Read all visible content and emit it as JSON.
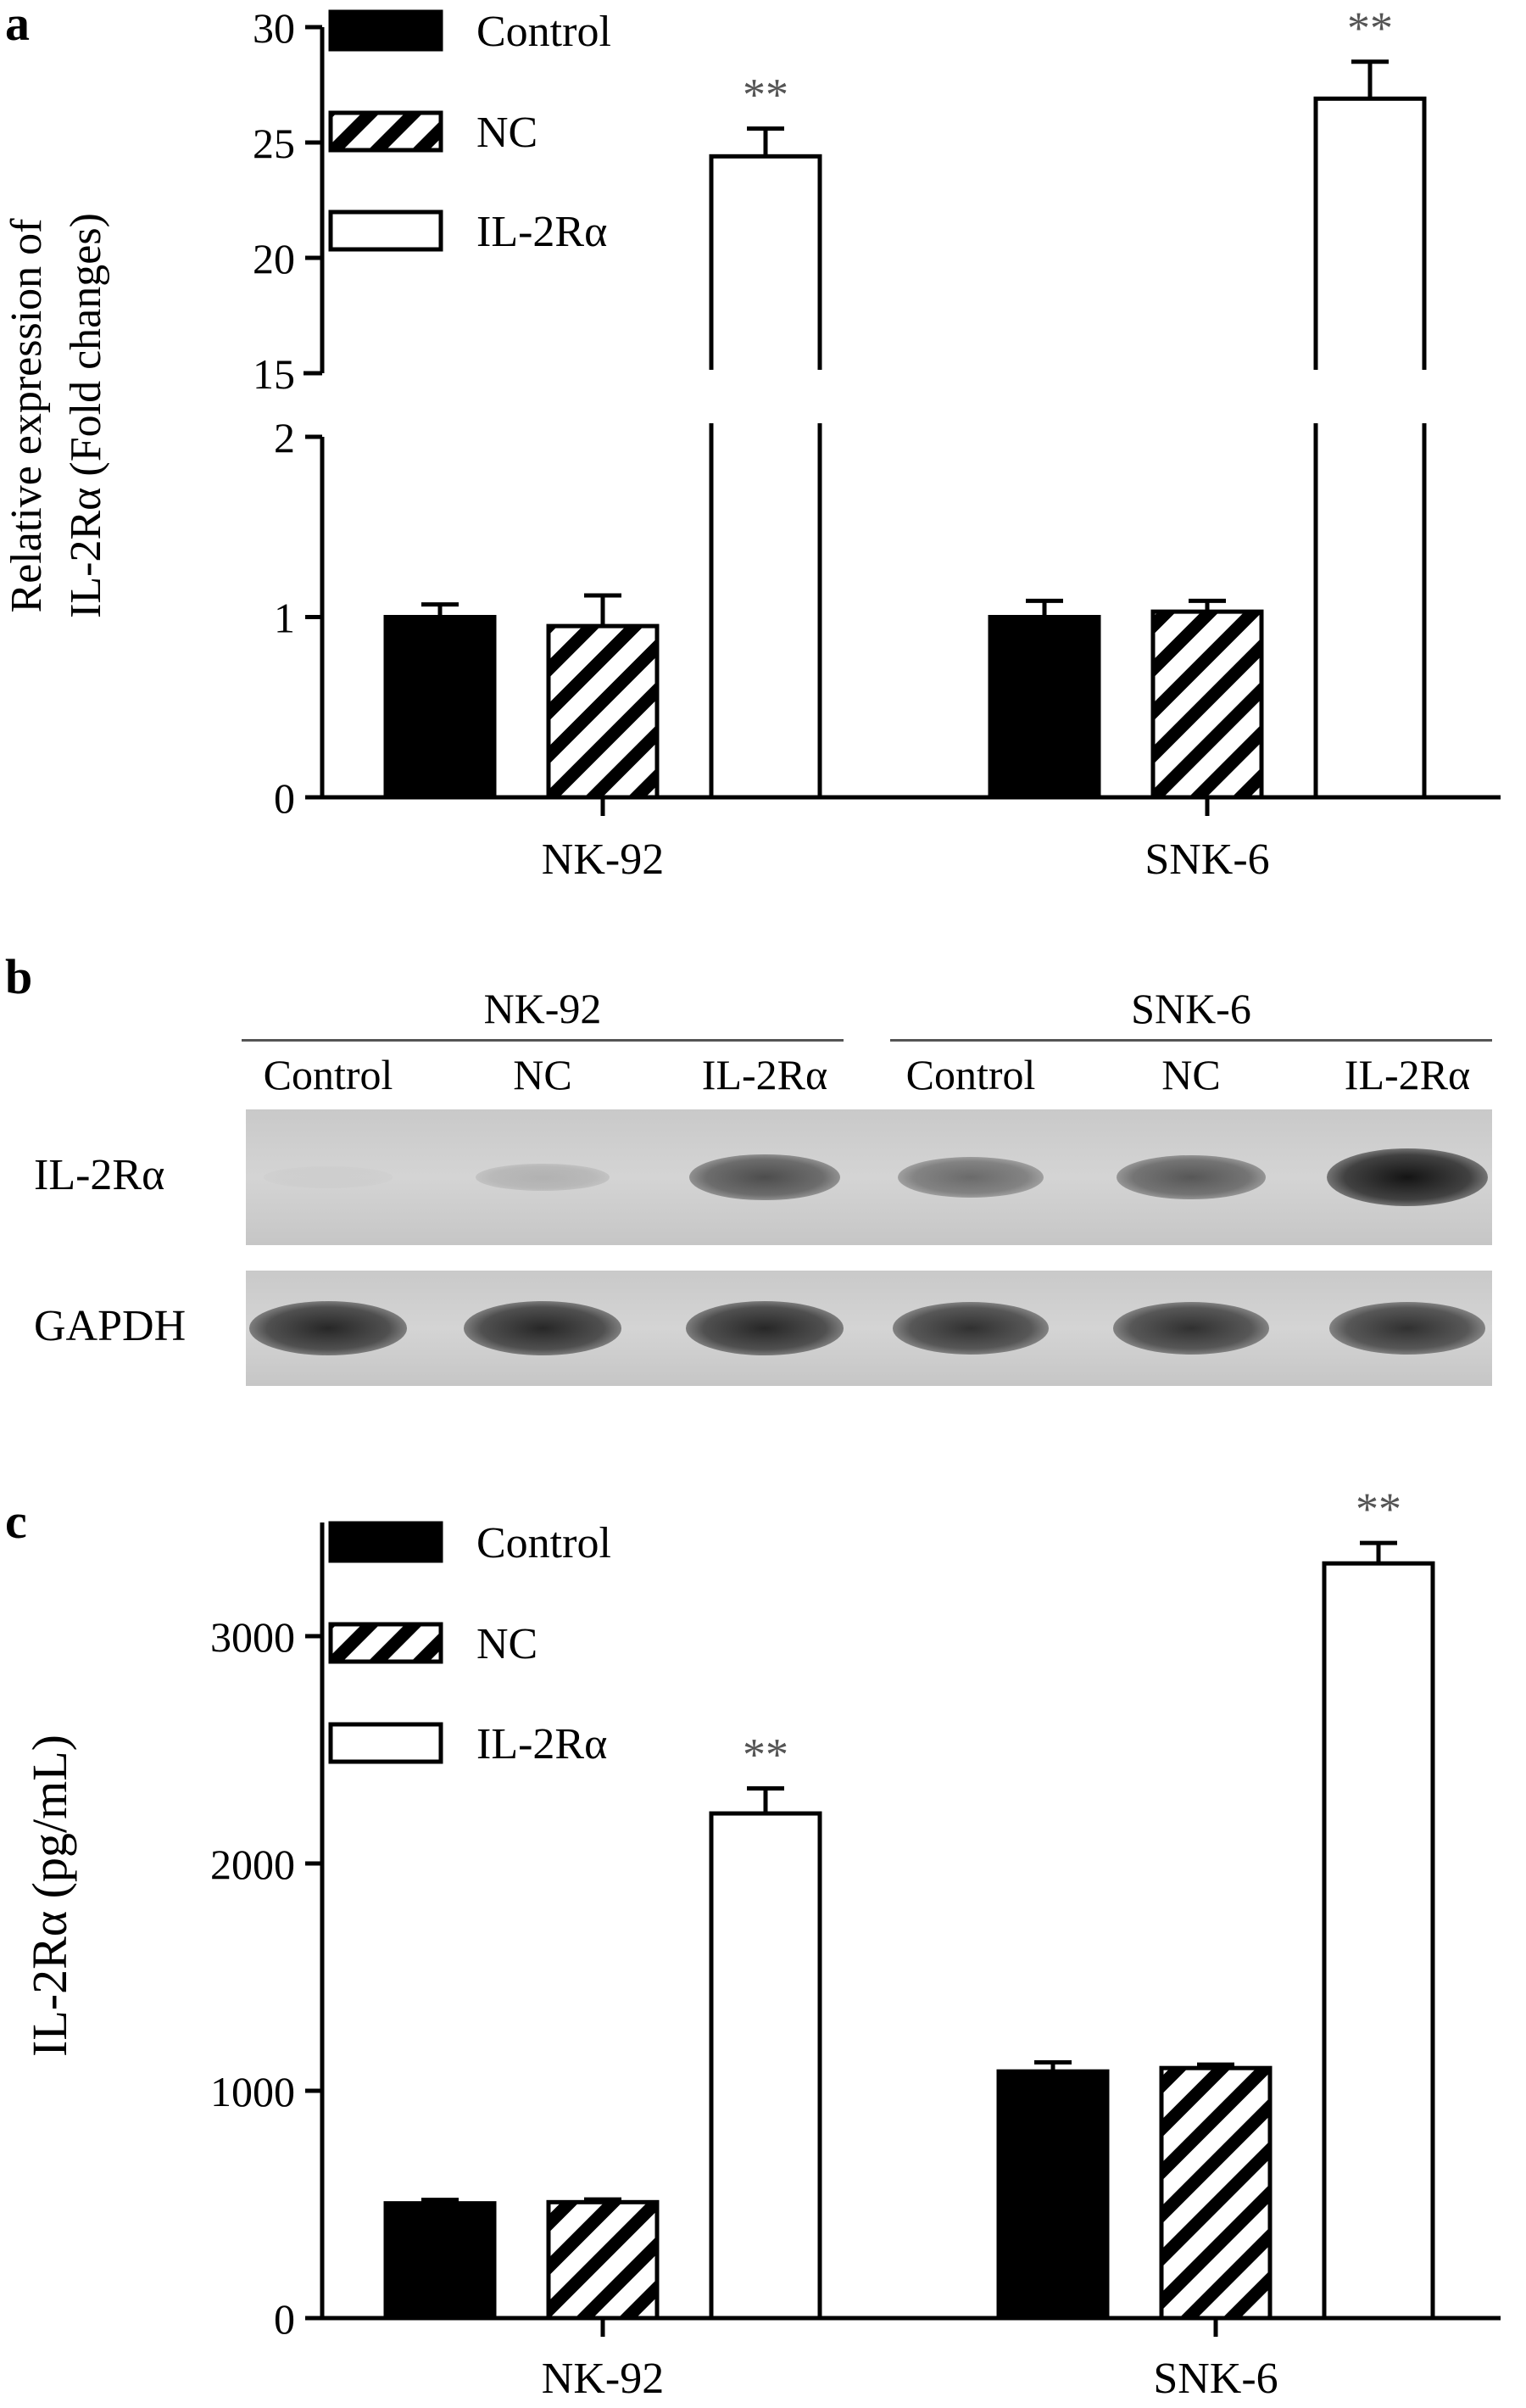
{
  "panels": {
    "a_letter": "a",
    "b_letter": "b",
    "c_letter": "c"
  },
  "chart_data": [
    {
      "type": "bar",
      "panel": "a",
      "ylabel_line1": "Relative expression of",
      "ylabel_line2": "IL-2Rα (Fold changes)",
      "categories": [
        "NK-92",
        "SNK-6"
      ],
      "series": [
        {
          "name": "Control",
          "values": [
            1.0,
            1.0
          ],
          "errors": [
            0.07,
            0.09
          ],
          "fill": "solid"
        },
        {
          "name": "NC",
          "values": [
            0.95,
            1.03
          ],
          "errors": [
            0.17,
            0.06
          ],
          "fill": "hatched"
        },
        {
          "name": "IL-2Rα",
          "values": [
            24.4,
            26.9
          ],
          "errors": [
            1.2,
            1.6
          ],
          "fill": "open"
        }
      ],
      "significance": [
        "**",
        "**"
      ],
      "axis_break": {
        "lower": [
          0,
          2
        ],
        "upper": [
          15,
          30
        ]
      },
      "yticks_lower": [
        "0",
        "1",
        "2"
      ],
      "yticks_upper": [
        "15",
        "20",
        "25",
        "30"
      ],
      "legend_position": "top-left"
    },
    {
      "type": "bar",
      "panel": "c",
      "ylabel": "IL-2Rα (pg/mL)",
      "categories": [
        "NK-92",
        "SNK-6"
      ],
      "series": [
        {
          "name": "Control",
          "values": [
            505,
            1085
          ],
          "errors": [
            15,
            40
          ],
          "fill": "solid"
        },
        {
          "name": "NC",
          "values": [
            510,
            1100
          ],
          "errors": [
            12,
            15
          ],
          "fill": "hatched"
        },
        {
          "name": "IL-2Rα",
          "values": [
            2220,
            3320
          ],
          "errors": [
            110,
            90
          ],
          "fill": "open"
        }
      ],
      "significance": [
        "**",
        "**"
      ],
      "ylim": [
        0,
        3500
      ],
      "yticks": [
        "0",
        "1000",
        "2000",
        "3000"
      ],
      "legend_position": "top-left"
    }
  ],
  "blot": {
    "groups": [
      "NK-92",
      "SNK-6"
    ],
    "lanes": [
      "Control",
      "NC",
      "IL-2Rα",
      "Control",
      "NC",
      "IL-2Rα"
    ],
    "rows": [
      {
        "label": "IL-2Rα",
        "intensity": [
          0.03,
          0.18,
          0.7,
          0.55,
          0.65,
          1.0
        ]
      },
      {
        "label": "GAPDH",
        "intensity": [
          0.9,
          0.9,
          0.9,
          0.85,
          0.85,
          0.85
        ]
      }
    ]
  },
  "colors": {
    "bar_solid": "#000000",
    "bar_open": "#ffffff",
    "axis": "#000000",
    "sig": "#555555"
  }
}
